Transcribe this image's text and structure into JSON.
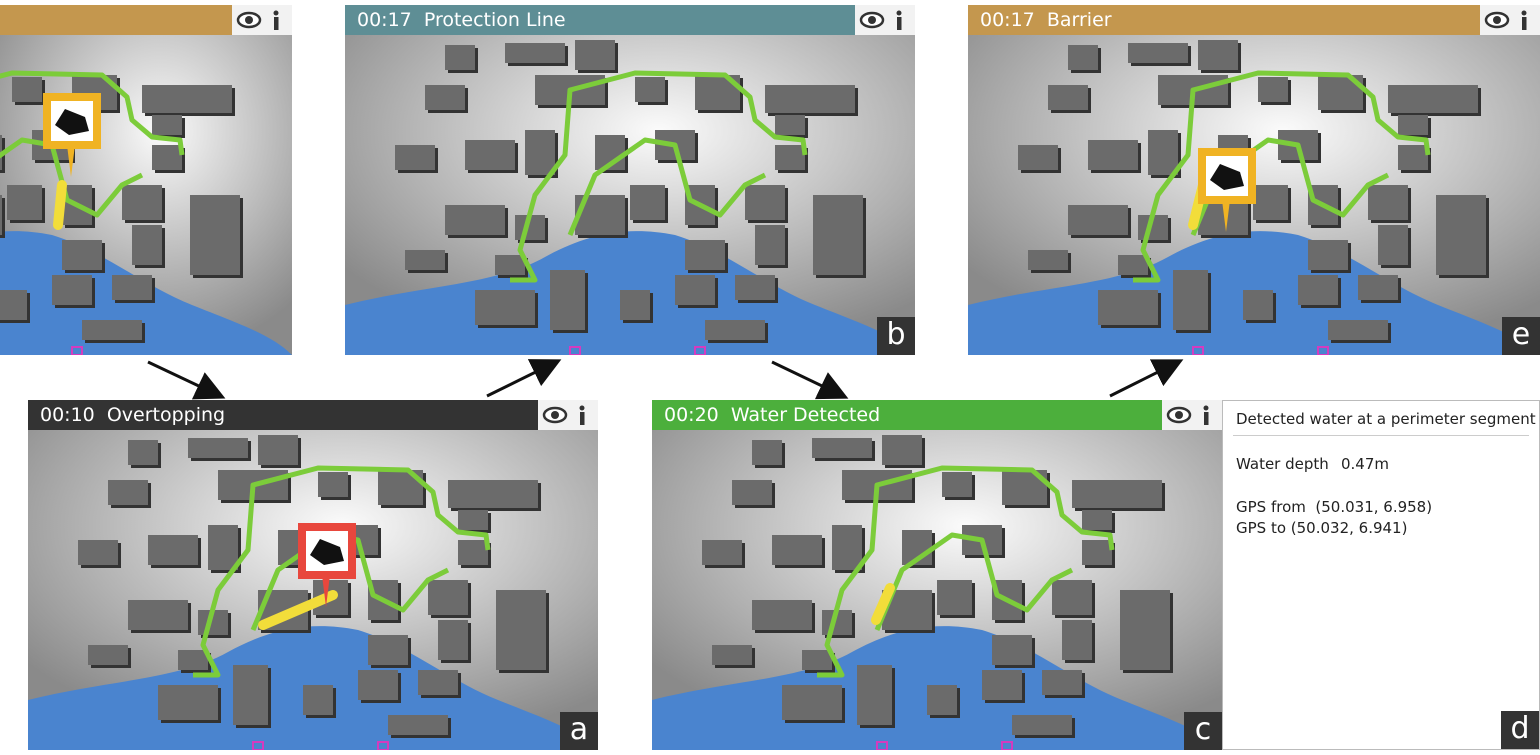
{
  "panel_top_left": {},
  "panel_b": {
    "title": "00:17  Protection Line",
    "label": "b"
  },
  "panel_e": {
    "title": "00:17  Barrier",
    "label": "e"
  },
  "panel_a": {
    "title": "00:10  Overtopping",
    "label": "a"
  },
  "panel_c": {
    "title": "00:20  Water Detected",
    "label": "c"
  },
  "panel_d": {
    "heading": "Detected water at a perimeter segment",
    "depth_label": "Water depth",
    "depth_value": "0.47m",
    "gps_from": "GPS from  (50.031, 6.958)",
    "gps_to": "GPS to (50.032, 6.941)",
    "label": "d"
  }
}
